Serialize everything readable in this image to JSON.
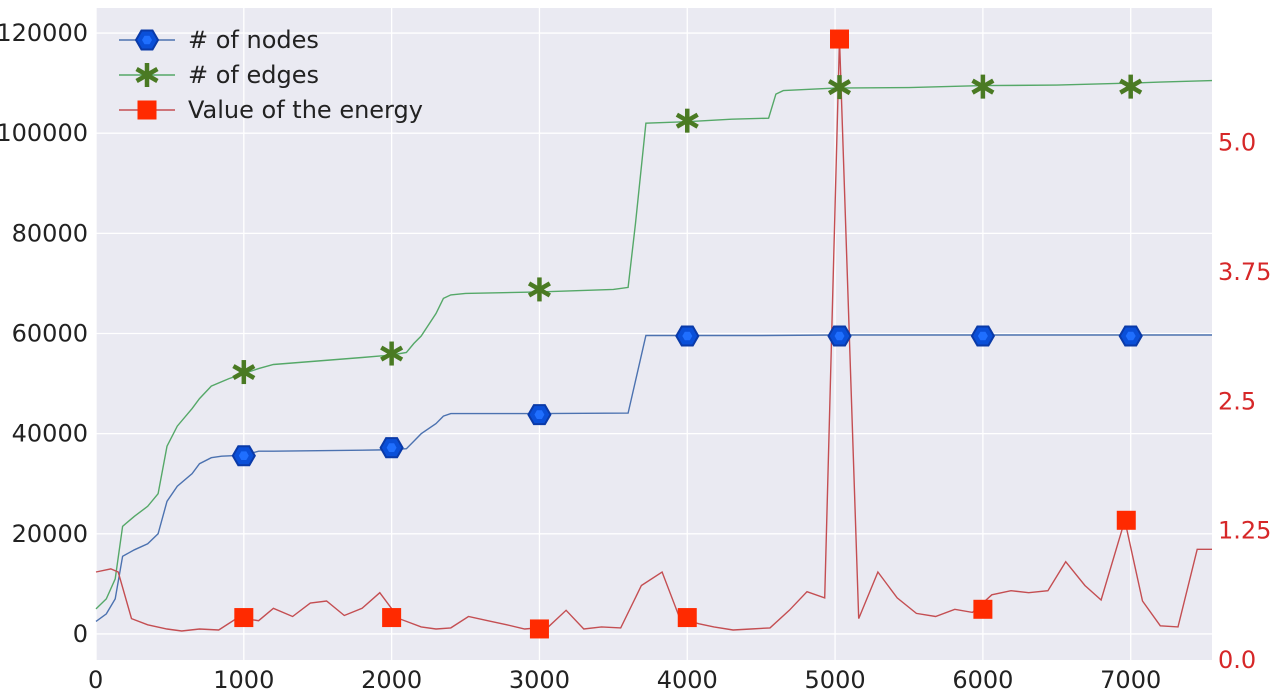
{
  "chart_data": {
    "type": "line",
    "title": "",
    "xlabel": "",
    "ylabel": "",
    "xlim": [
      0,
      7550
    ],
    "ylim_left": [
      -5200,
      125000
    ],
    "ylim_right": [
      0.0,
      6.3
    ],
    "x_ticks": [
      0,
      1000,
      2000,
      3000,
      4000,
      5000,
      6000,
      7000
    ],
    "y_ticks_left": [
      0,
      20000,
      40000,
      60000,
      80000,
      100000,
      120000
    ],
    "y_ticks_right": [
      0.0,
      1.25,
      2.5,
      3.75,
      5.0
    ],
    "y_tick_labels_right": [
      "0.0",
      "1.25",
      "2.5",
      "3.75",
      "5.0"
    ],
    "grid": true,
    "legend_position": "top-left",
    "colors": {
      "plot_background": "#eaeaf2",
      "grid": "#ffffff",
      "nodes": "#4c72b0",
      "nodes_marker": "#0a4fd8",
      "edges": "#55a868",
      "edges_marker": "#4a7a23",
      "energy": "#c44e52",
      "energy_marker": "#ff2a00",
      "right_axis_text": "#d62728"
    },
    "series": [
      {
        "name": "# of nodes",
        "axis": "left",
        "marker": "hexagon",
        "x": [
          0,
          70,
          130,
          180,
          260,
          350,
          420,
          480,
          550,
          650,
          700,
          780,
          850,
          1000,
          1100,
          1200,
          1500,
          1800,
          2000,
          2100,
          2150,
          2200,
          2300,
          2350,
          2400,
          2500,
          3000,
          3600,
          3720,
          4000,
          4500,
          5000,
          5500,
          6000,
          6500,
          7000,
          7550
        ],
        "y": [
          2500,
          4000,
          7000,
          15500,
          16800,
          18000,
          20000,
          26500,
          29500,
          32000,
          34000,
          35200,
          35500,
          35700,
          36500,
          36500,
          36600,
          36700,
          36800,
          37000,
          38500,
          40000,
          42000,
          43500,
          44000,
          44000,
          44000,
          44100,
          59600,
          59600,
          59600,
          59700,
          59700,
          59700,
          59700,
          59700,
          59700
        ],
        "marker_x": [
          1000,
          2000,
          3000,
          4000,
          5030,
          6000,
          7000
        ],
        "marker_y": [
          35600,
          37200,
          43800,
          59500,
          59500,
          59500,
          59500
        ]
      },
      {
        "name": "# of edges",
        "axis": "left",
        "marker": "star",
        "x": [
          0,
          70,
          130,
          180,
          260,
          350,
          420,
          480,
          550,
          650,
          700,
          780,
          900,
          1000,
          1100,
          1200,
          1500,
          1800,
          2000,
          2100,
          2150,
          2200,
          2300,
          2350,
          2400,
          2500,
          3000,
          3500,
          3600,
          3650,
          3720,
          4000,
          4300,
          4550,
          4600,
          4650,
          5000,
          5500,
          6000,
          6500,
          7000,
          7200,
          7550
        ],
        "y": [
          5000,
          7000,
          11000,
          21500,
          23500,
          25500,
          28000,
          37500,
          41500,
          45000,
          47000,
          49500,
          51000,
          52000,
          53000,
          53800,
          54500,
          55200,
          55700,
          56200,
          58000,
          59500,
          64000,
          67000,
          67700,
          68000,
          68300,
          68800,
          69200,
          82000,
          102000,
          102300,
          102800,
          103000,
          107800,
          108500,
          109000,
          109100,
          109500,
          109600,
          110000,
          110200,
          110500
        ],
        "marker_x": [
          1000,
          2000,
          3000,
          4000,
          5030,
          6000,
          7000
        ],
        "marker_y": [
          52300,
          56000,
          68800,
          102500,
          109200,
          109300,
          109300
        ]
      },
      {
        "name": "Value of the energy",
        "axis": "right",
        "marker": "square",
        "x": [
          0,
          100,
          150,
          240,
          350,
          480,
          580,
          700,
          830,
          960,
          1100,
          1200,
          1330,
          1450,
          1560,
          1680,
          1800,
          1920,
          2050,
          2200,
          2300,
          2400,
          2520,
          2650,
          2780,
          2900,
          3060,
          3180,
          3300,
          3420,
          3550,
          3690,
          3830,
          3950,
          4080,
          4180,
          4310,
          4430,
          4560,
          4690,
          4810,
          4930,
          5030,
          5160,
          5290,
          5420,
          5550,
          5680,
          5810,
          5930,
          6060,
          6190,
          6310,
          6440,
          6560,
          6690,
          6800,
          6960,
          7080,
          7200,
          7320,
          7450,
          7550
        ],
        "y": [
          0.85,
          0.88,
          0.85,
          0.4,
          0.34,
          0.3,
          0.28,
          0.3,
          0.29,
          0.41,
          0.38,
          0.5,
          0.42,
          0.55,
          0.57,
          0.43,
          0.5,
          0.65,
          0.4,
          0.32,
          0.3,
          0.31,
          0.42,
          0.38,
          0.34,
          0.3,
          0.32,
          0.48,
          0.3,
          0.32,
          0.31,
          0.72,
          0.85,
          0.4,
          0.35,
          0.32,
          0.29,
          0.3,
          0.31,
          0.48,
          0.66,
          0.6,
          6.0,
          0.4,
          0.85,
          0.6,
          0.45,
          0.42,
          0.49,
          0.46,
          0.63,
          0.67,
          0.65,
          0.67,
          0.95,
          0.72,
          0.58,
          1.35,
          0.57,
          0.33,
          0.32,
          1.07,
          1.07
        ],
        "marker_x": [
          1000,
          2000,
          3000,
          4000,
          5030,
          6000,
          6970
        ],
        "marker_y": [
          0.41,
          0.41,
          0.3,
          0.41,
          6.0,
          0.49,
          1.35
        ]
      }
    ]
  }
}
